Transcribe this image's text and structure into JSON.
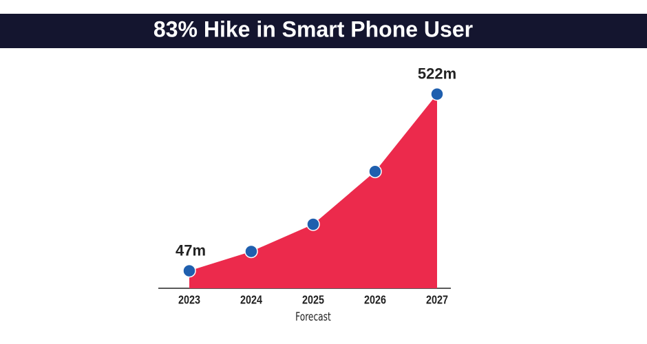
{
  "chart_data": {
    "type": "area",
    "title": "83% Hike in Smart Phone User",
    "categories": [
      "2023",
      "2024",
      "2025",
      "2026",
      "2027"
    ],
    "values": [
      47,
      99,
      172,
      314,
      522
    ],
    "value_labels": [
      "47m",
      null,
      null,
      null,
      "522m"
    ],
    "annotation": "Forecast",
    "color": "#ec2a4c",
    "marker_color": "#1f5fae",
    "ylim": [
      0,
      590
    ]
  }
}
